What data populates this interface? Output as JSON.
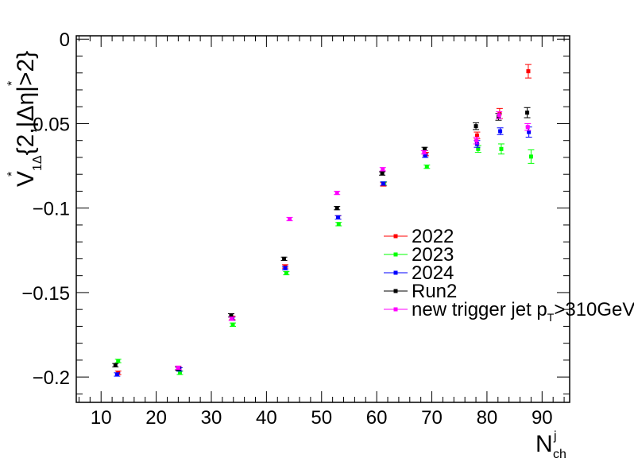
{
  "chart_data": {
    "type": "scatter",
    "title": "",
    "xlabel": "N_ch^j",
    "ylabel": "V*_1Δ{2,|Δη*|>2}",
    "xlim": [
      5.5,
      95
    ],
    "ylim": [
      -0.215,
      0.002
    ],
    "grid": false,
    "legend_placement": "center-right",
    "x_ticks": [
      10,
      20,
      30,
      40,
      50,
      60,
      70,
      80,
      90
    ],
    "x_tick_labels": [
      "10",
      "20",
      "30",
      "40",
      "50",
      "60",
      "70",
      "80",
      "90"
    ],
    "y_ticks": [
      0,
      -0.05,
      -0.1,
      -0.15,
      -0.2
    ],
    "y_tick_labels": [
      "0",
      "−0.05",
      "−0.1",
      "−0.15",
      "−0.2"
    ],
    "series": [
      {
        "name": "2022",
        "color": "#ff0000",
        "x": [
          13.1,
          24.2,
          33.8,
          43.4,
          53.0,
          61.2,
          68.9,
          78.2,
          82.3,
          87.5
        ],
        "y": [
          -0.1975,
          -0.1955,
          -0.165,
          -0.1345,
          -0.1055,
          -0.086,
          -0.068,
          -0.057,
          -0.044,
          -0.019
        ],
        "err": [
          0.001,
          0.001,
          0.001,
          0.001,
          0.001,
          0.001,
          0.001,
          0.002,
          0.003,
          0.004
        ]
      },
      {
        "name": "2023",
        "color": "#00ff00",
        "x": [
          13.1,
          24.3,
          33.9,
          43.6,
          53.1,
          61.3,
          69.1,
          78.4,
          82.6,
          88.0
        ],
        "y": [
          -0.1905,
          -0.1975,
          -0.169,
          -0.1385,
          -0.1095,
          -0.0855,
          -0.0755,
          -0.065,
          -0.065,
          -0.0695
        ],
        "err": [
          0.001,
          0.001,
          0.001,
          0.001,
          0.001,
          0.001,
          0.001,
          0.002,
          0.003,
          0.004
        ]
      },
      {
        "name": "2024",
        "color": "#0000ff",
        "x": [
          12.9,
          24.2,
          33.8,
          43.4,
          53.0,
          61.2,
          68.8,
          78.2,
          82.4,
          87.6
        ],
        "y": [
          -0.1985,
          -0.1955,
          -0.1655,
          -0.1355,
          -0.1055,
          -0.0855,
          -0.069,
          -0.062,
          -0.0545,
          -0.055
        ],
        "err": [
          0.001,
          0.001,
          0.001,
          0.001,
          0.001,
          0.001,
          0.001,
          0.002,
          0.002,
          0.003
        ]
      },
      {
        "name": "Run2",
        "color": "#000000",
        "x": [
          12.6,
          24.0,
          33.6,
          43.2,
          52.8,
          61.0,
          68.7,
          78.0,
          82.1,
          87.3
        ],
        "y": [
          -0.193,
          -0.195,
          -0.1635,
          -0.13,
          -0.1,
          -0.0795,
          -0.065,
          -0.0515,
          -0.046,
          -0.0435
        ],
        "err": [
          0.001,
          0.001,
          0.001,
          0.001,
          0.001,
          0.001,
          0.001,
          0.002,
          0.002,
          0.003
        ]
      },
      {
        "name": "new trigger jet p_T>310GeV",
        "color": "#ff00ff",
        "x": [
          24.0,
          33.7,
          44.2,
          52.8,
          61.1,
          68.6,
          78.1,
          82.2,
          87.4
        ],
        "y": [
          -0.1945,
          -0.1655,
          -0.1065,
          -0.091,
          -0.077,
          -0.067,
          -0.06,
          -0.045,
          -0.052
        ],
        "err": [
          0.001,
          0.001,
          0.001,
          0.001,
          0.001,
          0.001,
          0.002,
          0.002,
          0.002
        ]
      }
    ]
  }
}
